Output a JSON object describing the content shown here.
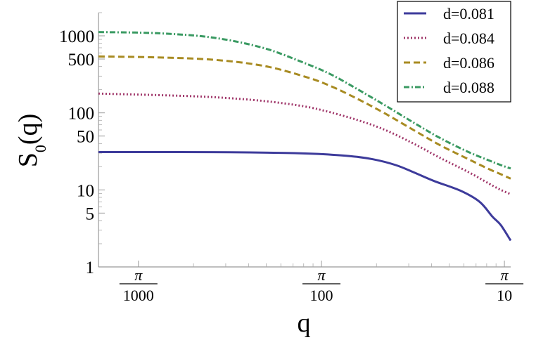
{
  "chart_data": {
    "type": "line",
    "xlabel": "q",
    "ylabel": "S0(q)",
    "ylabel_main": "S",
    "ylabel_sub": "0",
    "ylabel_arg": "(q)",
    "x_scale": "log",
    "y_scale": "log",
    "xlim": [
      0.0019,
      0.34
    ],
    "ylim": [
      1,
      2000
    ],
    "grid": false,
    "legend_position": "top-right",
    "y_ticks": [
      1,
      5,
      10,
      50,
      100,
      500,
      1000
    ],
    "y_tick_labels": [
      "1",
      "5",
      "10",
      "50",
      "100",
      "500",
      "1000"
    ],
    "x_ticks": [
      {
        "value": 0.0031416,
        "numerator": "π",
        "denominator": "1000"
      },
      {
        "value": 0.031416,
        "numerator": "π",
        "denominator": "100"
      },
      {
        "value": 0.31416,
        "numerator": "π",
        "denominator": "10"
      }
    ],
    "series": [
      {
        "name": "d=0.081",
        "color": "#3d3b9b",
        "dash": "solid",
        "points": [
          [
            0.0019,
            31
          ],
          [
            0.005,
            31
          ],
          [
            0.01,
            30.8
          ],
          [
            0.02,
            30.2
          ],
          [
            0.03,
            29.3
          ],
          [
            0.045,
            27.5
          ],
          [
            0.06,
            25
          ],
          [
            0.08,
            21
          ],
          [
            0.1,
            17
          ],
          [
            0.13,
            13
          ],
          [
            0.18,
            9.8
          ],
          [
            0.23,
            7
          ],
          [
            0.27,
            4.5
          ],
          [
            0.3,
            3.5
          ],
          [
            0.34,
            2.2
          ]
        ]
      },
      {
        "name": "d=0.084",
        "color": "#a0376a",
        "dash": "dotted",
        "points": [
          [
            0.0019,
            178
          ],
          [
            0.004,
            170
          ],
          [
            0.008,
            160
          ],
          [
            0.015,
            143
          ],
          [
            0.025,
            122
          ],
          [
            0.035,
            102
          ],
          [
            0.05,
            80
          ],
          [
            0.07,
            60
          ],
          [
            0.1,
            40
          ],
          [
            0.14,
            26
          ],
          [
            0.2,
            17
          ],
          [
            0.26,
            12
          ],
          [
            0.3,
            10
          ],
          [
            0.34,
            8.8
          ]
        ]
      },
      {
        "name": "d=0.086",
        "color": "#a88b22",
        "dash": "dashed",
        "points": [
          [
            0.0019,
            540
          ],
          [
            0.004,
            525
          ],
          [
            0.008,
            490
          ],
          [
            0.015,
            410
          ],
          [
            0.025,
            300
          ],
          [
            0.035,
            225
          ],
          [
            0.05,
            150
          ],
          [
            0.07,
            98
          ],
          [
            0.1,
            60
          ],
          [
            0.14,
            38
          ],
          [
            0.2,
            25
          ],
          [
            0.26,
            18.5
          ],
          [
            0.3,
            16
          ],
          [
            0.34,
            14
          ]
        ]
      },
      {
        "name": "d=0.088",
        "color": "#3a9a62",
        "dash": "dashdot",
        "points": [
          [
            0.0019,
            1120
          ],
          [
            0.004,
            1080
          ],
          [
            0.008,
            950
          ],
          [
            0.015,
            700
          ],
          [
            0.025,
            450
          ],
          [
            0.035,
            320
          ],
          [
            0.05,
            200
          ],
          [
            0.07,
            125
          ],
          [
            0.1,
            75
          ],
          [
            0.14,
            47
          ],
          [
            0.2,
            31
          ],
          [
            0.26,
            24
          ],
          [
            0.3,
            21
          ],
          [
            0.34,
            19
          ]
        ]
      }
    ]
  }
}
